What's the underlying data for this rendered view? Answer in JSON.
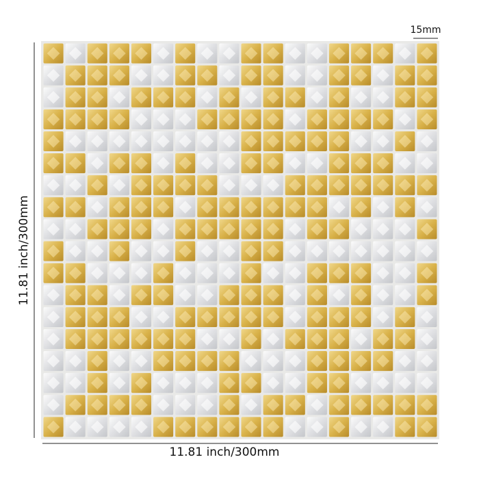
{
  "labels": {
    "tile_size": "15mm",
    "height": "11.81 inch/300mm",
    "width": "11.81 inch/300mm"
  }
}
